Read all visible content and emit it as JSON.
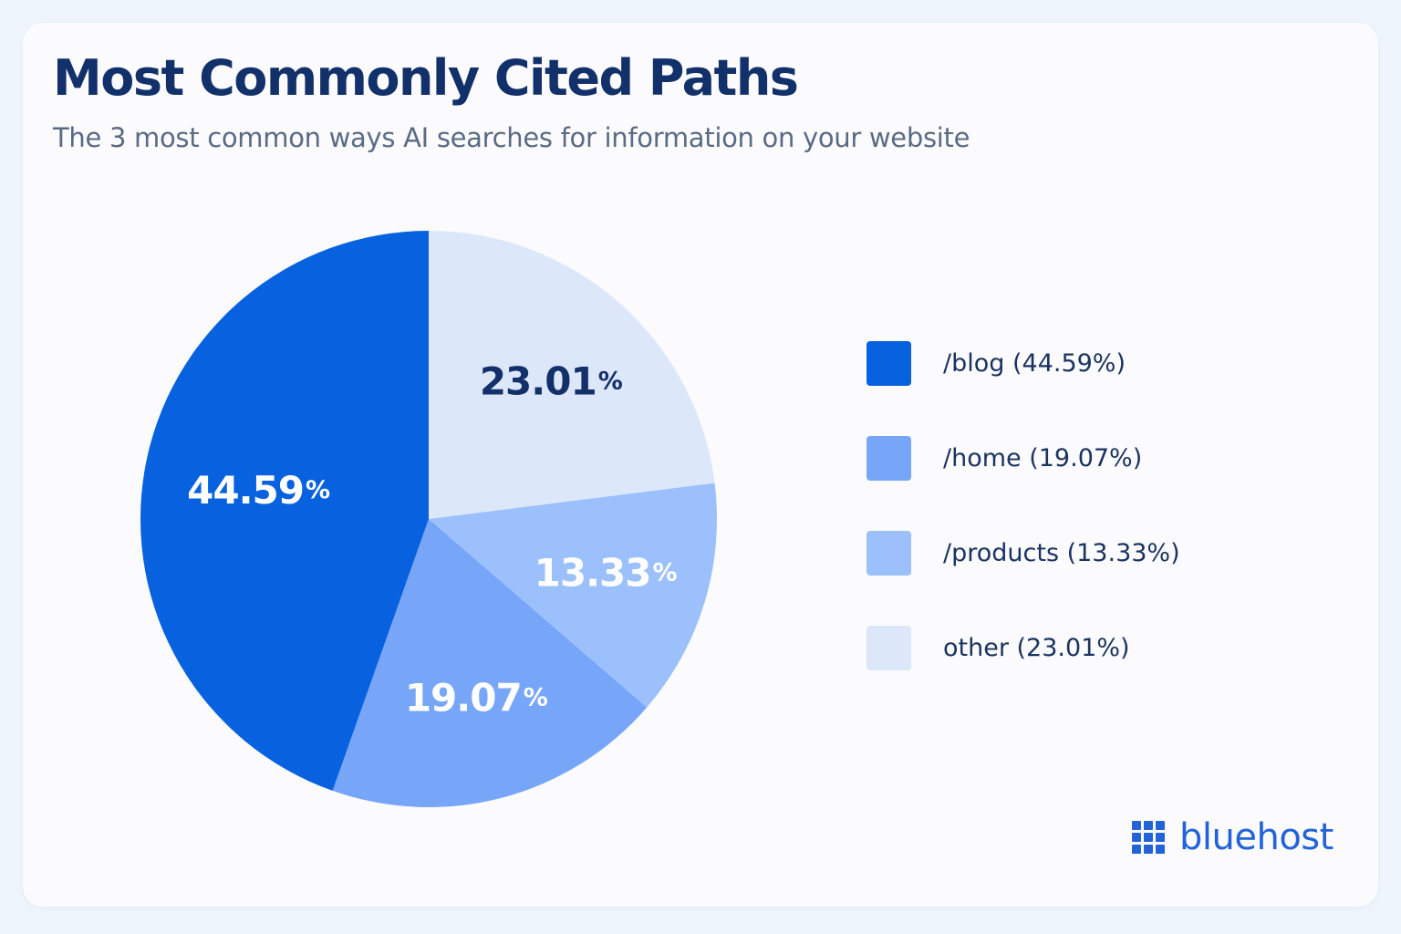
{
  "title": "Most Commonly Cited Paths",
  "subtitle": "The 3 most common ways AI searches for information on your website",
  "brand": {
    "name": "bluehost",
    "icon": "grid-logo-icon",
    "color": "#2363d8"
  },
  "chart_data": {
    "type": "pie",
    "title": "Most Commonly Cited Paths",
    "subtitle": "The 3 most common ways AI searches for information on your website",
    "unit": "%",
    "legend_position": "right",
    "slices": [
      {
        "label": "/blog",
        "value": 44.59,
        "color": "#0862df",
        "text_color": "#ffffff",
        "legend": "/blog (44.59%)",
        "data_label": "44.59",
        "unit": "%"
      },
      {
        "label": "/home",
        "value": 19.07,
        "color": "#77a6f9",
        "text_color": "#ffffff",
        "legend": "/home (19.07%)",
        "data_label": "19.07",
        "unit": "%"
      },
      {
        "label": "/products",
        "value": 13.33,
        "color": "#9cc0fb",
        "text_color": "#ffffff",
        "legend": "/products (13.33%)",
        "data_label": "13.33",
        "unit": "%"
      },
      {
        "label": "other",
        "value": 23.01,
        "color": "#dce8fa",
        "text_color": "#14306a",
        "legend": "other (23.01%)",
        "data_label": "23.01",
        "unit": "%"
      }
    ]
  }
}
